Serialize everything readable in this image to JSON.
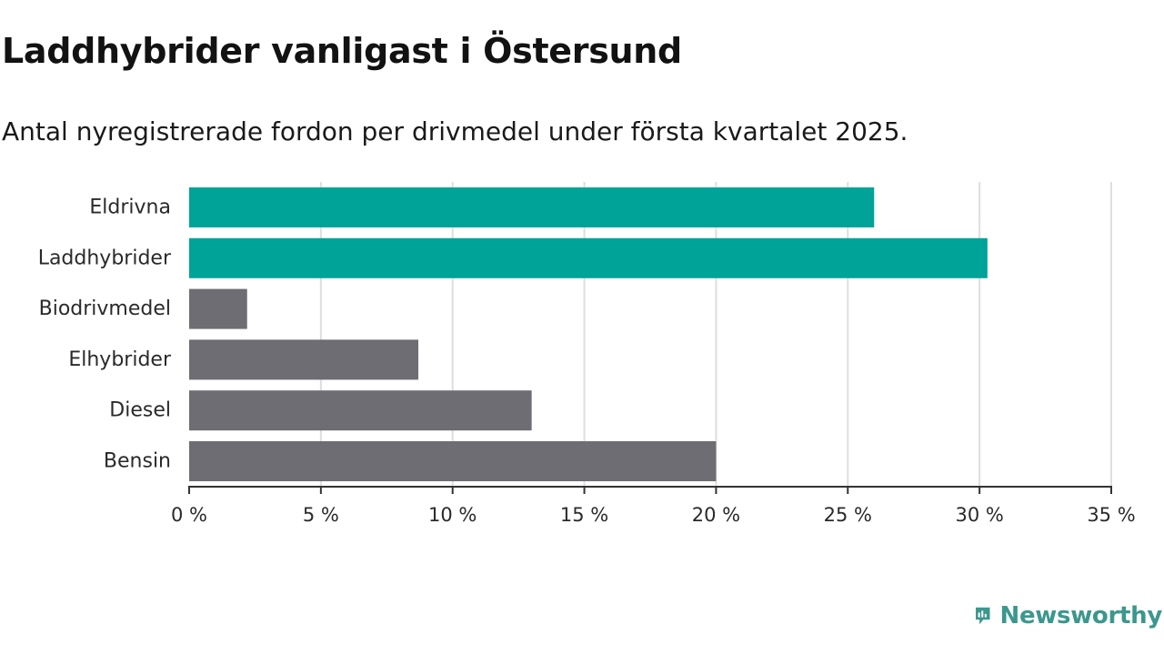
{
  "title": "Laddhybrider vanligast i Östersund",
  "subtitle": "Antal nyregistrerade fordon per drivmedel under första kvartalet 2025.",
  "brand": {
    "name": "Newsworthy",
    "icon": "bar-chart-speech-bubble-icon",
    "color": "#3c978d"
  },
  "colors": {
    "highlight": "#00a398",
    "base": "#6e6d73",
    "grid": "#dedede",
    "axis": "#333333"
  },
  "chart_data": {
    "type": "bar",
    "orientation": "horizontal",
    "categories": [
      "Eldrivna",
      "Laddhybrider",
      "Biodrivmedel",
      "Elhybrider",
      "Diesel",
      "Bensin"
    ],
    "values": [
      26.0,
      30.3,
      2.2,
      8.7,
      13.0,
      20.0
    ],
    "highlighted": [
      true,
      true,
      false,
      false,
      false,
      false
    ],
    "xlim": [
      0,
      35
    ],
    "xticks": [
      0,
      5,
      10,
      15,
      20,
      25,
      30,
      35
    ],
    "xtick_labels": [
      "0 %",
      "5 %",
      "10 %",
      "15 %",
      "20 %",
      "25 %",
      "30 %",
      "35 %"
    ],
    "grid": "vertical",
    "legend": "none"
  }
}
